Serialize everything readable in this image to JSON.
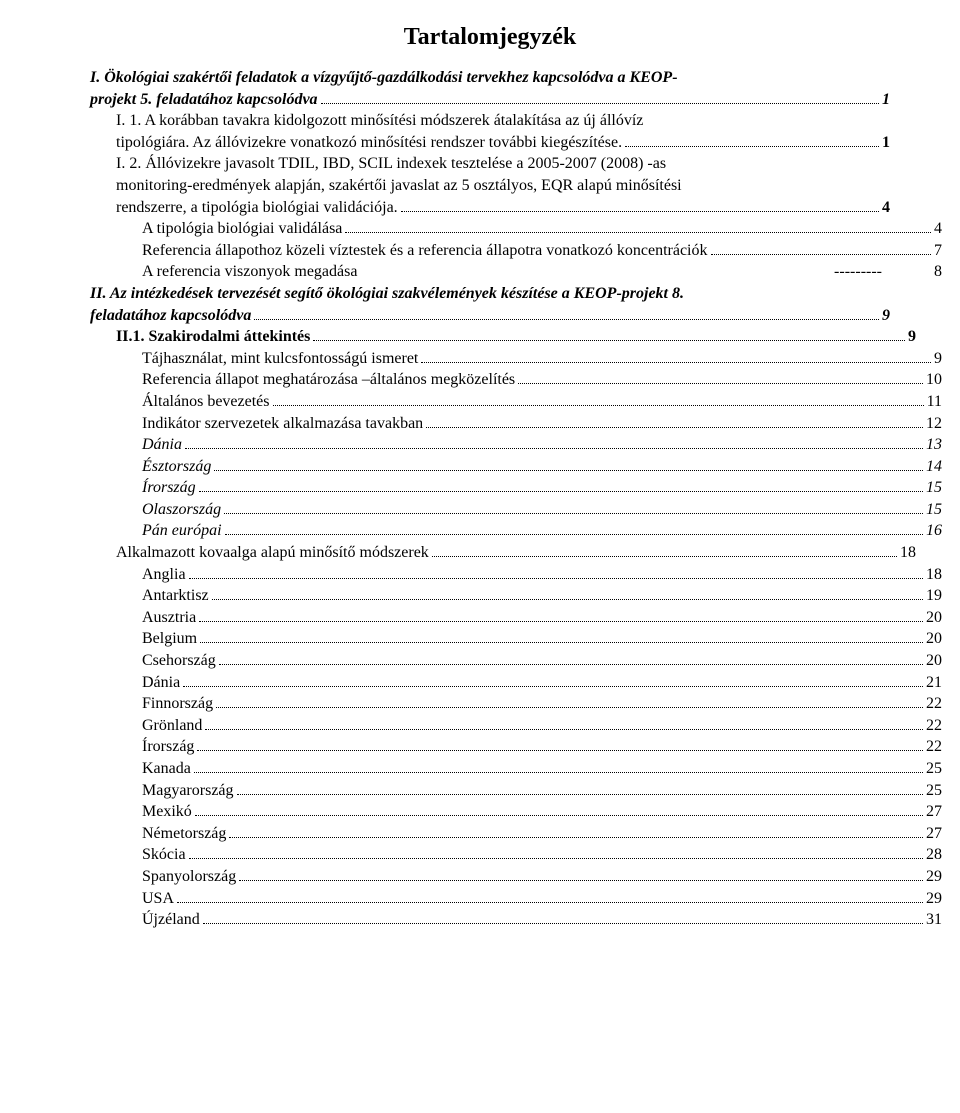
{
  "title": "Tartalomjegyzék",
  "entries": [
    {
      "kind": "multi",
      "style": "bold-italic",
      "indent": 0,
      "lines": [
        "I. Ökológiai szakértői feladatok a vízgyűjtő-gazdálkodási tervekhez kapcsolódva a KEOP-"
      ],
      "tail": "projekt 5. feladatához kapcsolódva",
      "page": "1"
    },
    {
      "kind": "multi",
      "style": "bold",
      "indent": 1,
      "lines": [
        "I. 1. A korábban tavakra kidolgozott minősítési módszerek átalakítása az új állóvíz"
      ],
      "tail": "tipológiára. Az állóvizekre vonatkozó minősítési rendszer további kiegészítése.",
      "page": "1"
    },
    {
      "kind": "multi",
      "style": "bold",
      "indent": 1,
      "lines": [
        "I. 2. Állóvizekre javasolt TDIL, IBD, SCIL indexek tesztelése a 2005-2007 (2008) -as",
        "monitoring-eredmények alapján, szakértői javaslat az 5 osztályos, EQR alapú minősítési"
      ],
      "tail": "rendszerre, a tipológia biológiai validációja.",
      "page": "4"
    },
    {
      "kind": "row",
      "style": "",
      "indent": 2,
      "label": "A tipológia biológiai validálása",
      "page": "4"
    },
    {
      "kind": "row",
      "style": "",
      "indent": 2,
      "label": "Referencia állapothoz közeli víztestek és a referencia állapotra vonatkozó koncentrációk",
      "page": "7"
    },
    {
      "kind": "nodots",
      "style": "",
      "indent": 2,
      "label": "A referencia viszonyok megadása",
      "dashes": "---------",
      "page": "8"
    },
    {
      "kind": "multi",
      "style": "bold-italic",
      "indent": 0,
      "lines": [
        "II. Az intézkedések tervezését segítő ökológiai szakvélemények készítése a KEOP-projekt 8."
      ],
      "tail": "feladatához kapcsolódva",
      "page": "9"
    },
    {
      "kind": "row",
      "style": "bold",
      "indent": 1,
      "label": "II.1. Szakirodalmi áttekintés",
      "page": "9"
    },
    {
      "kind": "row",
      "style": "",
      "indent": 2,
      "label": "Tájhasználat, mint kulcsfontosságú ismeret",
      "page": "9"
    },
    {
      "kind": "row",
      "style": "",
      "indent": 2,
      "label": "Referencia állapot meghatározása –általános megközelítés",
      "page": "10"
    },
    {
      "kind": "row",
      "style": "",
      "indent": 2,
      "label": "Általános bevezetés",
      "page": "11"
    },
    {
      "kind": "row",
      "style": "",
      "indent": 2,
      "label": "Indikátor szervezetek alkalmazása tavakban",
      "page": "12"
    },
    {
      "kind": "row",
      "style": "italic",
      "indent": 2,
      "label": "Dánia",
      "page": "13"
    },
    {
      "kind": "row",
      "style": "italic",
      "indent": 2,
      "label": "Észtország",
      "page": "14"
    },
    {
      "kind": "row",
      "style": "italic",
      "indent": 2,
      "label": "Írország",
      "page": "15"
    },
    {
      "kind": "row",
      "style": "italic",
      "indent": 2,
      "label": "Olaszország",
      "page": "15"
    },
    {
      "kind": "row",
      "style": "italic",
      "indent": 2,
      "label": "Pán európai",
      "page": "16"
    },
    {
      "kind": "row",
      "style": "",
      "indent": 1,
      "label": "Alkalmazott kovaalga alapú minősítő módszerek",
      "page": "18"
    },
    {
      "kind": "row",
      "style": "",
      "indent": 2,
      "label": "Anglia",
      "page": "18"
    },
    {
      "kind": "row",
      "style": "",
      "indent": 2,
      "label": "Antarktisz",
      "page": "19"
    },
    {
      "kind": "row",
      "style": "",
      "indent": 2,
      "label": "Ausztria",
      "page": "20"
    },
    {
      "kind": "row",
      "style": "",
      "indent": 2,
      "label": "Belgium",
      "page": "20"
    },
    {
      "kind": "row",
      "style": "",
      "indent": 2,
      "label": "Csehország",
      "page": "20"
    },
    {
      "kind": "row",
      "style": "",
      "indent": 2,
      "label": "Dánia",
      "page": "21"
    },
    {
      "kind": "row",
      "style": "",
      "indent": 2,
      "label": "Finnország",
      "page": "22"
    },
    {
      "kind": "row",
      "style": "",
      "indent": 2,
      "label": "Grönland",
      "page": "22"
    },
    {
      "kind": "row",
      "style": "",
      "indent": 2,
      "label": "Írország",
      "page": "22"
    },
    {
      "kind": "row",
      "style": "",
      "indent": 2,
      "label": "Kanada",
      "page": "25"
    },
    {
      "kind": "row",
      "style": "",
      "indent": 2,
      "label": "Magyarország",
      "page": "25"
    },
    {
      "kind": "row",
      "style": "",
      "indent": 2,
      "label": "Mexikó",
      "page": "27"
    },
    {
      "kind": "row",
      "style": "",
      "indent": 2,
      "label": "Németország",
      "page": "27"
    },
    {
      "kind": "row",
      "style": "",
      "indent": 2,
      "label": "Skócia",
      "page": "28"
    },
    {
      "kind": "row",
      "style": "",
      "indent": 2,
      "label": "Spanyolország",
      "page": "29"
    },
    {
      "kind": "row",
      "style": "",
      "indent": 2,
      "label": "USA",
      "page": "29"
    },
    {
      "kind": "row",
      "style": "",
      "indent": 2,
      "label": "Újzéland",
      "page": "31"
    }
  ]
}
